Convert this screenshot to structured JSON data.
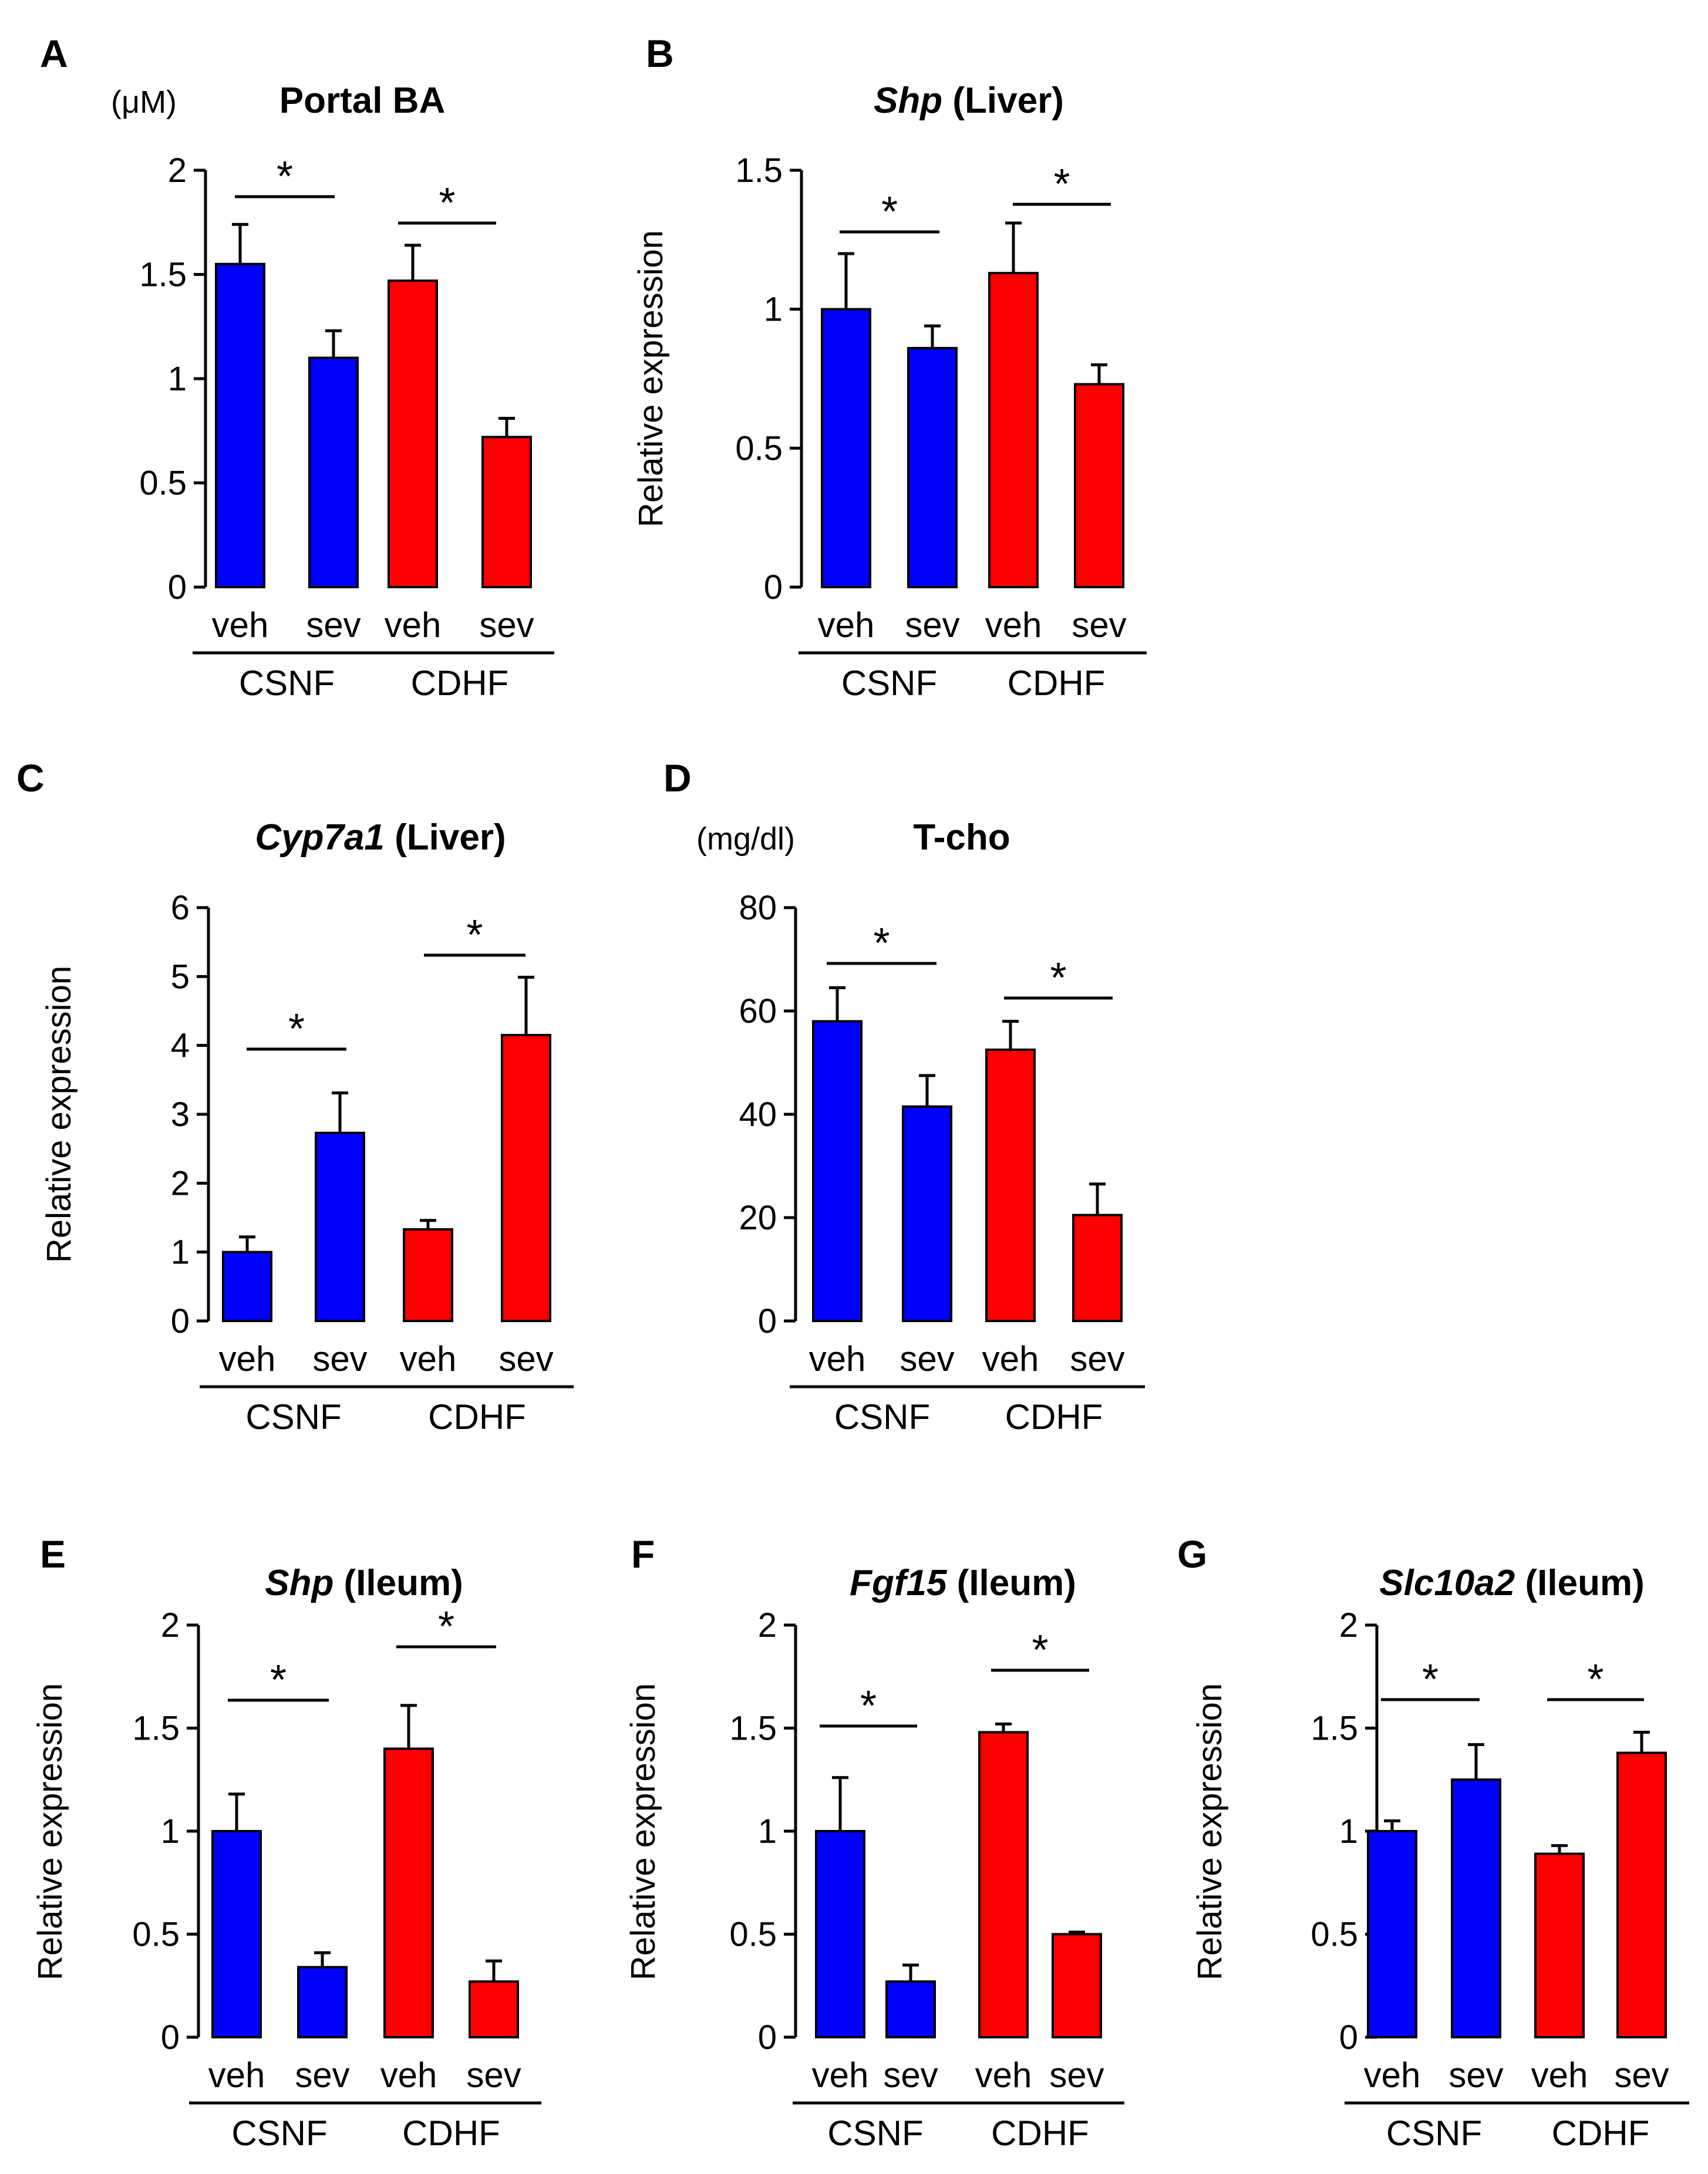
{
  "chart_data": [
    {
      "panel": "A",
      "type": "bar",
      "title": "Portal BA",
      "title_italic": "",
      "title_rest": "Portal BA",
      "unit": "(μM)",
      "ylabel": "",
      "ylim": [
        0,
        2
      ],
      "yticks": [
        0,
        0.5,
        1,
        1.5,
        2
      ],
      "ytick_labels": [
        "0",
        "0.5",
        "1",
        "1.5",
        "2"
      ],
      "categories": [
        "veh",
        "sev",
        "veh",
        "sev"
      ],
      "groups": [
        "CSNF",
        "CDHF"
      ],
      "values": [
        1.55,
        1.1,
        1.47,
        0.72
      ],
      "errors": [
        0.19,
        0.13,
        0.17,
        0.09
      ],
      "colors": [
        "#0000ff",
        "#0000ff",
        "#ff0000",
        "#ff0000"
      ],
      "significance": [
        "*",
        "*"
      ]
    },
    {
      "panel": "B",
      "type": "bar",
      "title": "Shp (Liver)",
      "title_italic": "Shp",
      "title_rest": " (Liver)",
      "unit": "",
      "ylabel": "Relative expression",
      "ylim": [
        0,
        1.5
      ],
      "yticks": [
        0,
        0.5,
        1,
        1.5
      ],
      "ytick_labels": [
        "0",
        "0.5",
        "1",
        "1.5"
      ],
      "categories": [
        "veh",
        "sev",
        "veh",
        "sev"
      ],
      "groups": [
        "CSNF",
        "CDHF"
      ],
      "values": [
        1.0,
        0.86,
        1.13,
        0.73
      ],
      "errors": [
        0.2,
        0.08,
        0.18,
        0.07
      ],
      "colors": [
        "#0000ff",
        "#0000ff",
        "#ff0000",
        "#ff0000"
      ],
      "significance": [
        "*",
        "*"
      ]
    },
    {
      "panel": "C",
      "type": "bar",
      "title": "Cyp7a1 (Liver)",
      "title_italic": "Cyp7a1",
      "title_rest": " (Liver)",
      "unit": "",
      "ylabel": "Relative expression",
      "ylim": [
        0,
        6
      ],
      "yticks": [
        0,
        1,
        2,
        3,
        4,
        5,
        6
      ],
      "ytick_labels": [
        "0",
        "1",
        "2",
        "3",
        "4",
        "5",
        "6"
      ],
      "categories": [
        "veh",
        "sev",
        "veh",
        "sev"
      ],
      "groups": [
        "CSNF",
        "CDHF"
      ],
      "values": [
        1.0,
        2.73,
        1.33,
        4.15
      ],
      "errors": [
        0.22,
        0.58,
        0.13,
        0.84
      ],
      "colors": [
        "#0000ff",
        "#0000ff",
        "#ff0000",
        "#ff0000"
      ],
      "significance": [
        "*",
        "*"
      ]
    },
    {
      "panel": "D",
      "type": "bar",
      "title": "T-cho",
      "title_italic": "",
      "title_rest": "T-cho",
      "unit": "(mg/dl)",
      "ylabel": "",
      "ylim": [
        0,
        80
      ],
      "yticks": [
        0,
        20,
        40,
        60,
        80
      ],
      "ytick_labels": [
        "0",
        "20",
        "40",
        "60",
        "80"
      ],
      "categories": [
        "veh",
        "sev",
        "veh",
        "sev"
      ],
      "groups": [
        "CSNF",
        "CDHF"
      ],
      "values": [
        58,
        41.5,
        52.5,
        20.5
      ],
      "errors": [
        6.5,
        6,
        5.5,
        6
      ],
      "colors": [
        "#0000ff",
        "#0000ff",
        "#ff0000",
        "#ff0000"
      ],
      "significance": [
        "*",
        "*"
      ]
    },
    {
      "panel": "E",
      "type": "bar",
      "title": "Shp (Ileum)",
      "title_italic": "Shp",
      "title_rest": " (Ileum)",
      "unit": "",
      "ylabel": "Relative expression",
      "ylim": [
        0,
        2
      ],
      "yticks": [
        0,
        0.5,
        1,
        1.5,
        2
      ],
      "ytick_labels": [
        "0",
        "0.5",
        "1",
        "1.5",
        "2"
      ],
      "categories": [
        "veh",
        "sev",
        "veh",
        "sev"
      ],
      "groups": [
        "CSNF",
        "CDHF"
      ],
      "values": [
        1.0,
        0.34,
        1.4,
        0.27
      ],
      "errors": [
        0.18,
        0.07,
        0.21,
        0.1
      ],
      "colors": [
        "#0000ff",
        "#0000ff",
        "#ff0000",
        "#ff0000"
      ],
      "significance": [
        "*",
        "*"
      ]
    },
    {
      "panel": "F",
      "type": "bar",
      "title": "Fgf15 (Ileum)",
      "title_italic": "Fgf15",
      "title_rest": " (Ileum)",
      "unit": "",
      "ylabel": "Relative expression",
      "ylim": [
        0,
        2
      ],
      "yticks": [
        0,
        0.5,
        1,
        1.5,
        2
      ],
      "ytick_labels": [
        "0",
        "0.5",
        "1",
        "1.5",
        "2"
      ],
      "categories": [
        "veh",
        "sev",
        "veh",
        "sev"
      ],
      "groups": [
        "CSNF",
        "CDHF"
      ],
      "values": [
        1.0,
        0.27,
        1.48,
        0.5
      ],
      "errors": [
        0.26,
        0.08,
        0.04,
        0.01
      ],
      "colors": [
        "#0000ff",
        "#0000ff",
        "#ff0000",
        "#ff0000"
      ],
      "significance": [
        "*",
        "*"
      ]
    },
    {
      "panel": "G",
      "type": "bar",
      "title": "Slc10a2 (Ileum)",
      "title_italic": "Slc10a2",
      "title_rest": " (Ileum)",
      "unit": "",
      "ylabel": "Relative expression",
      "ylim": [
        0,
        2
      ],
      "yticks": [
        0,
        0.5,
        1,
        1.5,
        2
      ],
      "ytick_labels": [
        "0",
        "0.5",
        "1",
        "1.5",
        "2"
      ],
      "categories": [
        "veh",
        "sev",
        "veh",
        "sev"
      ],
      "groups": [
        "CSNF",
        "CDHF"
      ],
      "values": [
        1.0,
        1.25,
        0.89,
        1.38
      ],
      "errors": [
        0.05,
        0.17,
        0.04,
        0.1
      ],
      "colors": [
        "#0000ff",
        "#0000ff",
        "#ff0000",
        "#ff0000"
      ],
      "significance": [
        "*",
        "*"
      ]
    }
  ]
}
